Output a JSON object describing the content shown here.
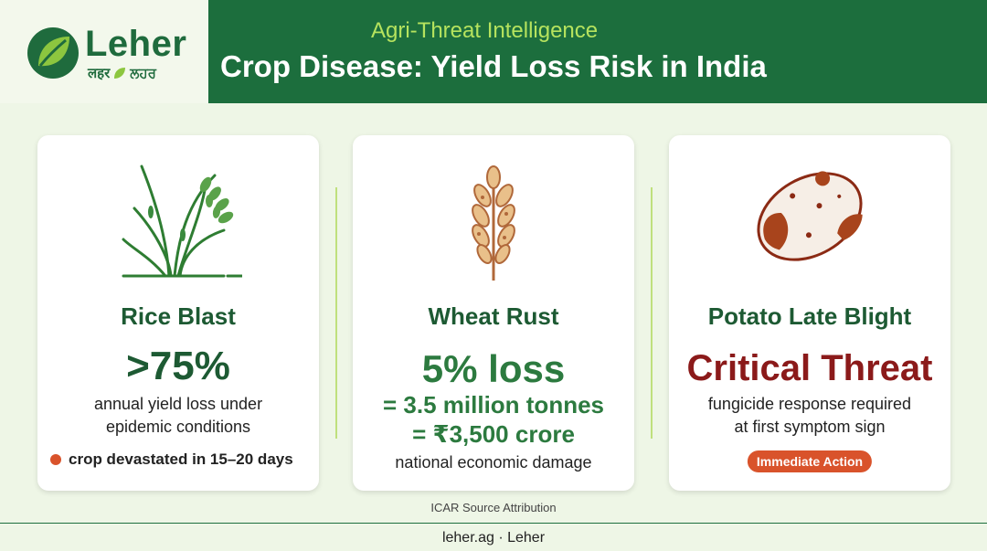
{
  "brand": {
    "name": "Leher",
    "subtitle_hindi": "लहर",
    "subtitle_punjabi": "ਲਹਰ"
  },
  "header": {
    "kicker": "Agri-Threat Intelligence",
    "title": "Crop Disease: Yield Loss Risk in India"
  },
  "cards": [
    {
      "icon": "rice-plant-icon",
      "name": "Rice Blast",
      "stat": ">75%",
      "desc_line1": "annual yield loss under",
      "desc_line2": "epidemic conditions",
      "note": "crop devastated in 15–20 days"
    },
    {
      "icon": "wheat-ear-icon",
      "name": "Wheat Rust",
      "stat": "5% loss",
      "eq1": "= 3.5 million tonnes",
      "eq2": "= ₹3,500 crore",
      "desc": "national economic damage"
    },
    {
      "icon": "potato-icon",
      "name": "Potato Late Blight",
      "stat": "Critical Threat",
      "desc_line1": "fungicide response required",
      "desc_line2": "at first symptom sign",
      "badge": "Immediate Action"
    }
  ],
  "source": "ICAR Source Attribution",
  "footer": "leher.ag · Leher",
  "colors": {
    "header_bg": "#1c6e3d",
    "kicker": "#b6e35e",
    "accent_red": "#8b1a1a",
    "accent_orange": "#d9532b",
    "page_bg": "#eef6e6"
  }
}
